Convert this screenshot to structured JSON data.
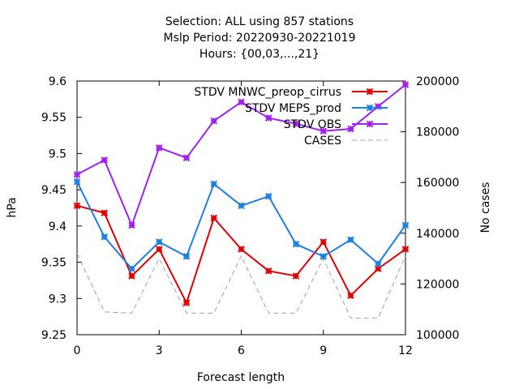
{
  "chart_data": {
    "type": "line",
    "title_lines": [
      "Selection: ALL using   857 stations",
      "Mslp   Period: 20220930-20221019",
      "Hours: {00,03,...,21}"
    ],
    "xlabel": "Forecast length",
    "ylabel": "hPa",
    "y2label": "No cases",
    "xlim": [
      0,
      12
    ],
    "xticks": [
      0,
      3,
      6,
      9,
      12
    ],
    "ylim": [
      9.25,
      9.6
    ],
    "yticks": [
      "9.25",
      "9.3",
      "9.35",
      "9.4",
      "9.45",
      "9.5",
      "9.55",
      "9.6"
    ],
    "y2lim": [
      100000,
      200000
    ],
    "y2ticks": [
      "100000",
      "120000",
      "140000",
      "160000",
      "180000",
      "200000"
    ],
    "grid": false,
    "legend_position": "top-right",
    "x": [
      0,
      1,
      2,
      3,
      4,
      5,
      6,
      7,
      8,
      9,
      10,
      11,
      12
    ],
    "series": [
      {
        "name": "STDV MNWC_preop_cirrus",
        "color": "#e00000",
        "axis": "y",
        "style": "line-marker",
        "values": [
          9.428,
          9.418,
          9.331,
          9.368,
          9.294,
          9.411,
          9.368,
          9.338,
          9.331,
          9.378,
          9.304,
          9.341,
          9.368
        ]
      },
      {
        "name": "STDV MEPS_prod",
        "color": "#1e7fe0",
        "axis": "y",
        "style": "line-marker",
        "values": [
          9.461,
          9.385,
          9.341,
          9.378,
          9.358,
          9.458,
          9.428,
          9.441,
          9.375,
          9.358,
          9.381,
          9.348,
          9.401
        ]
      },
      {
        "name": "STDV OBS",
        "color": "#a020f0",
        "axis": "y",
        "style": "line-marker",
        "values": [
          9.471,
          9.491,
          9.401,
          9.508,
          9.494,
          9.545,
          9.571,
          9.549,
          9.541,
          9.531,
          9.534,
          9.565,
          9.595
        ]
      },
      {
        "name": "CASES",
        "color": "#a0a0a0",
        "axis": "y2",
        "style": "dashed",
        "values": [
          132000,
          109000,
          108500,
          130000,
          108500,
          108500,
          131000,
          108500,
          108500,
          130000,
          106500,
          106500,
          131000
        ]
      }
    ]
  }
}
